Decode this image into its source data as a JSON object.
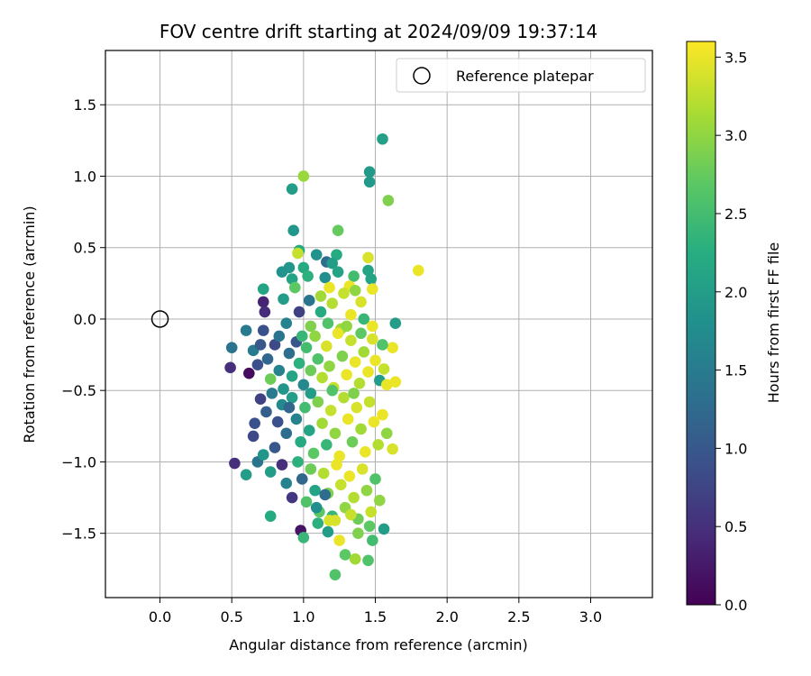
{
  "chart_data": {
    "type": "scatter",
    "title": "FOV centre drift starting at 2024/09/09 19:37:14",
    "xlabel": "Angular distance from reference (arcmin)",
    "ylabel": "Rotation from reference (arcmin)",
    "xlim": [
      -0.38,
      3.43
    ],
    "ylim": [
      -1.95,
      1.88
    ],
    "x_ticks": [
      "0.0",
      "0.5",
      "1.0",
      "1.5",
      "2.0",
      "2.5",
      "3.0"
    ],
    "y_ticks": [
      "−1.5",
      "−1.0",
      "−0.5",
      "0.0",
      "0.5",
      "1.0",
      "1.5"
    ],
    "grid": true,
    "legend": {
      "placement": "top-right",
      "entries": [
        "Reference platepar"
      ]
    },
    "reference_point": {
      "x": 0.0,
      "y": 0.0,
      "marker": "open-circle"
    },
    "colorbar": {
      "label": "Hours from first FF file",
      "colormap": "viridis",
      "range": [
        0.0,
        3.6
      ],
      "ticks": [
        "0.0",
        "0.5",
        "1.0",
        "1.5",
        "2.0",
        "2.5",
        "3.0",
        "3.5"
      ]
    },
    "series": [
      {
        "points": [
          [
            1.55,
            1.26,
            2.05
          ],
          [
            1.46,
            1.03,
            1.95
          ],
          [
            1.46,
            0.96,
            1.95
          ],
          [
            1.0,
            1.0,
            3.05
          ],
          [
            0.92,
            0.91,
            2.0
          ],
          [
            1.59,
            0.83,
            2.9
          ],
          [
            0.93,
            0.62,
            1.9
          ],
          [
            1.24,
            0.62,
            2.75
          ],
          [
            0.97,
            0.48,
            2.2
          ],
          [
            0.96,
            0.46,
            3.3
          ],
          [
            1.09,
            0.45,
            1.85
          ],
          [
            1.23,
            0.45,
            2.2
          ],
          [
            1.45,
            0.43,
            3.4
          ],
          [
            1.8,
            0.34,
            3.5
          ],
          [
            0.9,
            0.36,
            1.9
          ],
          [
            1.0,
            0.36,
            2.2
          ],
          [
            1.16,
            0.4,
            1.3
          ],
          [
            1.2,
            0.39,
            2.0
          ],
          [
            1.45,
            0.34,
            2.1
          ],
          [
            1.24,
            0.33,
            2.1
          ],
          [
            0.85,
            0.33,
            1.85
          ],
          [
            0.92,
            0.28,
            2.1
          ],
          [
            1.03,
            0.3,
            2.3
          ],
          [
            1.15,
            0.29,
            1.8
          ],
          [
            1.35,
            0.3,
            2.5
          ],
          [
            1.47,
            0.28,
            2.1
          ],
          [
            0.72,
            0.21,
            2.1
          ],
          [
            0.94,
            0.22,
            2.7
          ],
          [
            1.18,
            0.22,
            3.5
          ],
          [
            1.32,
            0.23,
            3.5
          ],
          [
            1.48,
            0.21,
            3.5
          ],
          [
            1.12,
            0.16,
            3.1
          ],
          [
            1.28,
            0.18,
            3.3
          ],
          [
            1.36,
            0.2,
            3.0
          ],
          [
            1.4,
            0.12,
            3.4
          ],
          [
            0.72,
            0.12,
            0.35
          ],
          [
            0.86,
            0.14,
            2.0
          ],
          [
            1.04,
            0.13,
            1.4
          ],
          [
            1.2,
            0.11,
            3.2
          ],
          [
            0.73,
            0.05,
            0.45
          ],
          [
            0.97,
            0.05,
            0.7
          ],
          [
            1.12,
            0.05,
            2.2
          ],
          [
            1.33,
            0.03,
            3.5
          ],
          [
            1.42,
            0.0,
            2.4
          ],
          [
            1.64,
            -0.03,
            2.0
          ],
          [
            0.6,
            -0.08,
            1.5
          ],
          [
            0.72,
            -0.08,
            0.9
          ],
          [
            0.88,
            -0.03,
            1.6
          ],
          [
            1.05,
            -0.05,
            2.9
          ],
          [
            1.26,
            -0.07,
            3.1
          ],
          [
            1.48,
            -0.05,
            3.5
          ],
          [
            0.5,
            -0.2,
            1.4
          ],
          [
            0.49,
            -0.34,
            0.5
          ],
          [
            0.62,
            -0.38,
            0.1
          ],
          [
            0.65,
            -0.22,
            1.5
          ],
          [
            0.68,
            -0.32,
            0.9
          ],
          [
            0.75,
            -0.28,
            1.2
          ],
          [
            0.77,
            -0.42,
            2.8
          ],
          [
            0.8,
            -0.18,
            0.8
          ],
          [
            0.83,
            -0.36,
            1.6
          ],
          [
            0.86,
            -0.49,
            1.9
          ],
          [
            0.9,
            -0.24,
            1.3
          ],
          [
            0.92,
            -0.4,
            2.1
          ],
          [
            0.95,
            -0.16,
            1.0
          ],
          [
            0.97,
            -0.31,
            2.3
          ],
          [
            1.0,
            -0.46,
            1.7
          ],
          [
            1.02,
            -0.2,
            2.5
          ],
          [
            1.05,
            -0.36,
            2.8
          ],
          [
            1.08,
            -0.12,
            3.0
          ],
          [
            1.1,
            -0.28,
            2.6
          ],
          [
            1.13,
            -0.41,
            3.2
          ],
          [
            1.16,
            -0.19,
            3.4
          ],
          [
            1.18,
            -0.33,
            3.0
          ],
          [
            1.21,
            -0.48,
            3.3
          ],
          [
            1.24,
            -0.1,
            3.5
          ],
          [
            1.27,
            -0.26,
            2.9
          ],
          [
            1.3,
            -0.39,
            3.5
          ],
          [
            1.33,
            -0.15,
            3.3
          ],
          [
            1.36,
            -0.3,
            3.5
          ],
          [
            1.39,
            -0.45,
            3.2
          ],
          [
            1.42,
            -0.23,
            3.1
          ],
          [
            1.45,
            -0.37,
            3.5
          ],
          [
            1.48,
            -0.14,
            3.4
          ],
          [
            1.5,
            -0.29,
            3.5
          ],
          [
            1.53,
            -0.43,
            2.0
          ],
          [
            1.56,
            -0.35,
            3.3
          ],
          [
            1.58,
            -0.46,
            3.5
          ],
          [
            1.62,
            -0.2,
            3.5
          ],
          [
            1.64,
            -0.44,
            3.5
          ],
          [
            1.55,
            -0.18,
            2.6
          ],
          [
            1.4,
            -0.1,
            2.7
          ],
          [
            1.3,
            -0.05,
            3.0
          ],
          [
            1.17,
            -0.03,
            2.6
          ],
          [
            0.99,
            -0.12,
            2.4
          ],
          [
            0.83,
            -0.12,
            1.4
          ],
          [
            0.7,
            -0.18,
            1.0
          ],
          [
            0.7,
            -0.56,
            0.7
          ],
          [
            0.74,
            -0.65,
            1.1
          ],
          [
            0.78,
            -0.52,
            1.5
          ],
          [
            0.82,
            -0.72,
            0.9
          ],
          [
            0.85,
            -0.6,
            1.7
          ],
          [
            0.88,
            -0.8,
            1.3
          ],
          [
            0.92,
            -0.55,
            2.0
          ],
          [
            0.95,
            -0.7,
            1.6
          ],
          [
            0.98,
            -0.86,
            2.2
          ],
          [
            1.01,
            -0.62,
            2.5
          ],
          [
            1.04,
            -0.78,
            2.1
          ],
          [
            1.07,
            -0.94,
            2.7
          ],
          [
            1.1,
            -0.58,
            2.9
          ],
          [
            1.13,
            -0.73,
            3.1
          ],
          [
            1.16,
            -0.88,
            2.4
          ],
          [
            1.19,
            -0.64,
            3.3
          ],
          [
            1.22,
            -0.8,
            3.0
          ],
          [
            1.25,
            -0.96,
            3.5
          ],
          [
            1.28,
            -0.55,
            3.2
          ],
          [
            1.31,
            -0.7,
            3.5
          ],
          [
            1.34,
            -0.86,
            2.8
          ],
          [
            1.37,
            -0.62,
            3.4
          ],
          [
            1.4,
            -0.77,
            3.1
          ],
          [
            1.43,
            -0.93,
            3.5
          ],
          [
            1.46,
            -0.58,
            3.3
          ],
          [
            1.49,
            -0.72,
            3.5
          ],
          [
            1.52,
            -0.88,
            3.2
          ],
          [
            1.55,
            -0.67,
            3.5
          ],
          [
            1.58,
            -0.8,
            3.0
          ],
          [
            1.62,
            -0.91,
            3.4
          ],
          [
            1.35,
            -0.52,
            2.9
          ],
          [
            1.2,
            -0.5,
            2.6
          ],
          [
            1.05,
            -0.52,
            2.0
          ],
          [
            0.9,
            -0.62,
            1.2
          ],
          [
            0.66,
            -0.73,
            0.9
          ],
          [
            0.65,
            -0.82,
            0.8
          ],
          [
            0.52,
            -1.01,
            0.5
          ],
          [
            0.6,
            -1.09,
            2.0
          ],
          [
            0.68,
            -1.0,
            1.4
          ],
          [
            0.72,
            -0.95,
            1.9
          ],
          [
            0.77,
            -1.07,
            2.0
          ],
          [
            0.8,
            -0.9,
            1.0
          ],
          [
            0.85,
            -1.02,
            0.5
          ],
          [
            0.88,
            -1.15,
            1.6
          ],
          [
            0.92,
            -1.25,
            0.6
          ],
          [
            0.96,
            -1.0,
            2.3
          ],
          [
            0.99,
            -1.12,
            1.2
          ],
          [
            1.02,
            -1.28,
            2.6
          ],
          [
            1.05,
            -1.05,
            2.8
          ],
          [
            1.08,
            -1.2,
            2.1
          ],
          [
            1.11,
            -1.35,
            2.7
          ],
          [
            1.14,
            -1.08,
            3.2
          ],
          [
            1.17,
            -1.22,
            2.9
          ],
          [
            1.2,
            -1.38,
            2.4
          ],
          [
            1.23,
            -1.02,
            3.5
          ],
          [
            1.26,
            -1.16,
            3.3
          ],
          [
            1.29,
            -1.32,
            3.0
          ],
          [
            1.32,
            -1.1,
            3.5
          ],
          [
            1.35,
            -1.25,
            3.2
          ],
          [
            1.38,
            -1.4,
            2.8
          ],
          [
            1.41,
            -1.05,
            3.4
          ],
          [
            1.44,
            -1.2,
            3.0
          ],
          [
            1.47,
            -1.35,
            3.3
          ],
          [
            1.5,
            -1.12,
            2.6
          ],
          [
            1.53,
            -1.27,
            3.0
          ],
          [
            1.56,
            -1.47,
            2.0
          ],
          [
            0.77,
            -1.38,
            2.2
          ],
          [
            0.98,
            -1.48,
            0.2
          ],
          [
            1.0,
            -1.53,
            2.4
          ],
          [
            1.1,
            -1.43,
            2.3
          ],
          [
            1.17,
            -1.49,
            2.0
          ],
          [
            1.22,
            -1.41,
            3.4
          ],
          [
            1.25,
            -1.55,
            3.5
          ],
          [
            1.33,
            -1.37,
            3.3
          ],
          [
            1.38,
            -1.5,
            2.9
          ],
          [
            1.46,
            -1.45,
            2.7
          ],
          [
            1.48,
            -1.55,
            2.5
          ],
          [
            1.29,
            -1.65,
            2.7
          ],
          [
            1.36,
            -1.68,
            3.1
          ],
          [
            1.45,
            -1.69,
            2.6
          ],
          [
            1.22,
            -1.79,
            2.6
          ],
          [
            1.18,
            -1.41,
            3.4
          ],
          [
            1.15,
            -1.23,
            1.3
          ],
          [
            1.09,
            -1.32,
            1.8
          ]
        ]
      }
    ]
  }
}
